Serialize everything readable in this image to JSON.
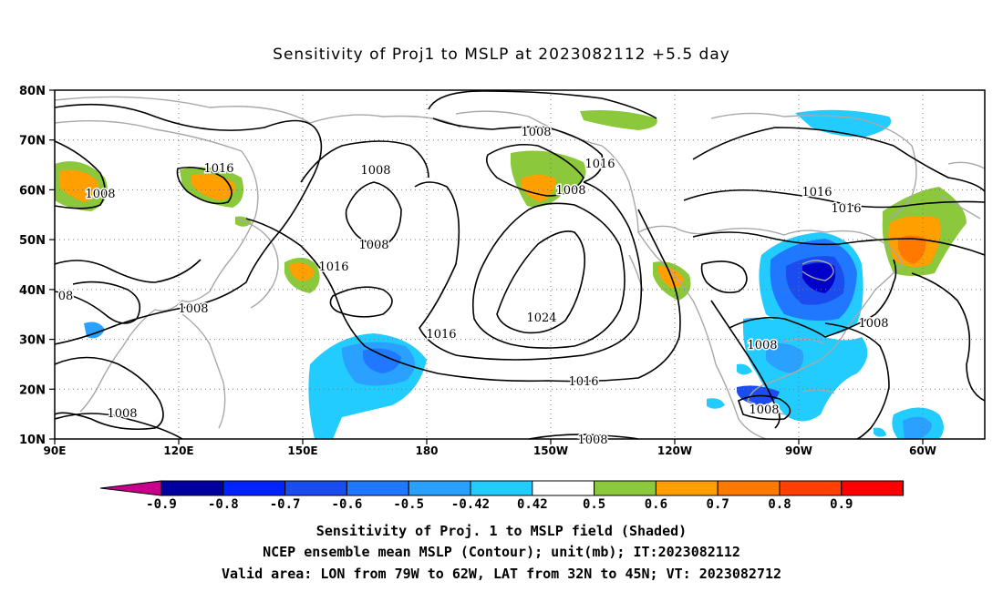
{
  "title": "Sensitivity of Proj1 to MSLP at 2023082112 +5.5 day",
  "map": {
    "lat_labels": [
      "80N",
      "70N",
      "60N",
      "50N",
      "40N",
      "30N",
      "20N",
      "10N"
    ],
    "lon_labels": [
      "90E",
      "120E",
      "150E",
      "180",
      "150W",
      "120W",
      "90W",
      "60W"
    ],
    "lat_range": [
      10,
      80
    ],
    "lon_range": [
      "90E",
      "45W"
    ],
    "contour_unit": "mb",
    "contour_labels": [
      {
        "text": "1008"
      },
      {
        "text": "1016"
      },
      {
        "text": "1008"
      },
      {
        "text": "1008"
      },
      {
        "text": "1016"
      },
      {
        "text": "1008"
      },
      {
        "text": "1016"
      },
      {
        "text": "1008"
      },
      {
        "text": "1016"
      },
      {
        "text": "1016"
      },
      {
        "text": "08"
      },
      {
        "text": "1008"
      },
      {
        "text": "1024"
      },
      {
        "text": "1016"
      },
      {
        "text": "1016"
      },
      {
        "text": "1008"
      },
      {
        "text": "1008"
      },
      {
        "text": "1008"
      },
      {
        "text": "1008"
      },
      {
        "text": "1008"
      }
    ]
  },
  "colorbar": {
    "labels": [
      "-0.9",
      "-0.8",
      "-0.7",
      "-0.6",
      "-0.5",
      "-0.42",
      "0.42",
      "0.5",
      "0.6",
      "0.7",
      "0.8",
      "0.9"
    ],
    "colors": [
      "#c8008c",
      "#0000a0",
      "#0022ff",
      "#1a4cf0",
      "#1f78ff",
      "#2aa0ff",
      "#22ccff",
      "#ffffff",
      "#8cc83c",
      "#ff9f00",
      "#ff7800",
      "#ff4000",
      "#ff0000",
      "#f0a0c8"
    ]
  },
  "footer": {
    "line1": "Sensitivity of Proj. 1 to MSLP field (Shaded)",
    "line2": "NCEP ensemble mean MSLP (Contour); unit(mb); IT:2023082112",
    "line3": "Valid area: LON from 79W to 62W, LAT from 32N to 45N; VT: 2023082712"
  }
}
